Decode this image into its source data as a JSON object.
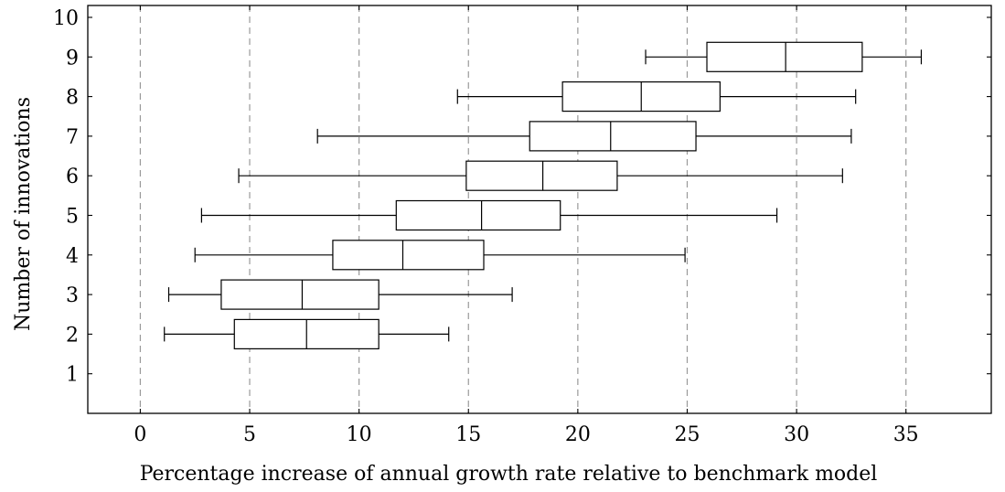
{
  "chart_data": {
    "type": "boxplot",
    "orientation": "horizontal",
    "title": "",
    "xlabel": "Percentage increase of annual growth rate relative to benchmark model",
    "ylabel": "Number of innovations",
    "xlim": [
      -2.4,
      38.9
    ],
    "ylim": [
      0.0,
      10.3
    ],
    "x_ticks": [
      0,
      5,
      10,
      15,
      20,
      25,
      30,
      35
    ],
    "y_ticks": [
      1,
      2,
      3,
      4,
      5,
      6,
      7,
      8,
      9,
      10
    ],
    "grid": "vertical dashed at x ticks",
    "boxes": [
      {
        "y": 2,
        "whisker_low": 1.1,
        "q1": 4.3,
        "median": 7.6,
        "q3": 10.9,
        "whisker_high": 14.1
      },
      {
        "y": 3,
        "whisker_low": 1.3,
        "q1": 3.7,
        "median": 7.4,
        "q3": 10.9,
        "whisker_high": 17.0
      },
      {
        "y": 4,
        "whisker_low": 2.5,
        "q1": 8.8,
        "median": 12.0,
        "q3": 15.7,
        "whisker_high": 24.9
      },
      {
        "y": 5,
        "whisker_low": 2.8,
        "q1": 11.7,
        "median": 15.6,
        "q3": 19.2,
        "whisker_high": 29.1
      },
      {
        "y": 6,
        "whisker_low": 4.5,
        "q1": 14.9,
        "median": 18.4,
        "q3": 21.8,
        "whisker_high": 32.1
      },
      {
        "y": 7,
        "whisker_low": 8.1,
        "q1": 17.8,
        "median": 21.5,
        "q3": 25.4,
        "whisker_high": 32.5
      },
      {
        "y": 8,
        "whisker_low": 14.5,
        "q1": 19.3,
        "median": 22.9,
        "q3": 26.5,
        "whisker_high": 32.7
      },
      {
        "y": 9,
        "whisker_low": 23.1,
        "q1": 25.9,
        "median": 29.5,
        "q3": 33.0,
        "whisker_high": 35.7
      }
    ]
  }
}
